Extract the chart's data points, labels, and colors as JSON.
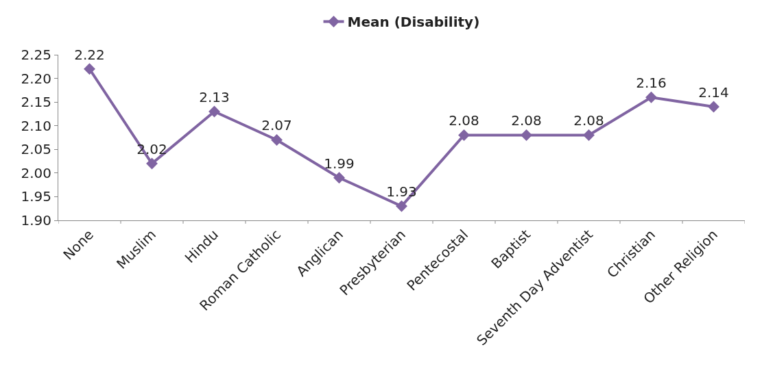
{
  "chart_data": {
    "type": "line",
    "categories": [
      "None",
      "Muslim",
      "Hindu",
      "Roman Catholic",
      "Anglican",
      "Presbyterian",
      "Pentecostal",
      "Baptist",
      "Seventh Day Adventist",
      "Christian",
      "Other Religion"
    ],
    "series": [
      {
        "name": "Mean (Disability)",
        "color": "#8064a2",
        "values": [
          2.22,
          2.02,
          2.13,
          2.07,
          1.99,
          1.93,
          2.08,
          2.08,
          2.08,
          2.16,
          2.14
        ]
      }
    ],
    "ylim": [
      1.9,
      2.25
    ],
    "yticks": [
      {
        "value": 1.9,
        "label": "1.90"
      },
      {
        "value": 1.95,
        "label": "1.95"
      },
      {
        "value": 2.0,
        "label": "2.00"
      },
      {
        "value": 2.05,
        "label": "2.05"
      },
      {
        "value": 2.1,
        "label": "2.10"
      },
      {
        "value": 2.15,
        "label": "2.15"
      },
      {
        "value": 2.2,
        "label": "2.20"
      },
      {
        "value": 2.25,
        "label": "2.25"
      }
    ],
    "data_labels": true,
    "marker": "diamond",
    "line_style": "solid",
    "legend": "top"
  }
}
